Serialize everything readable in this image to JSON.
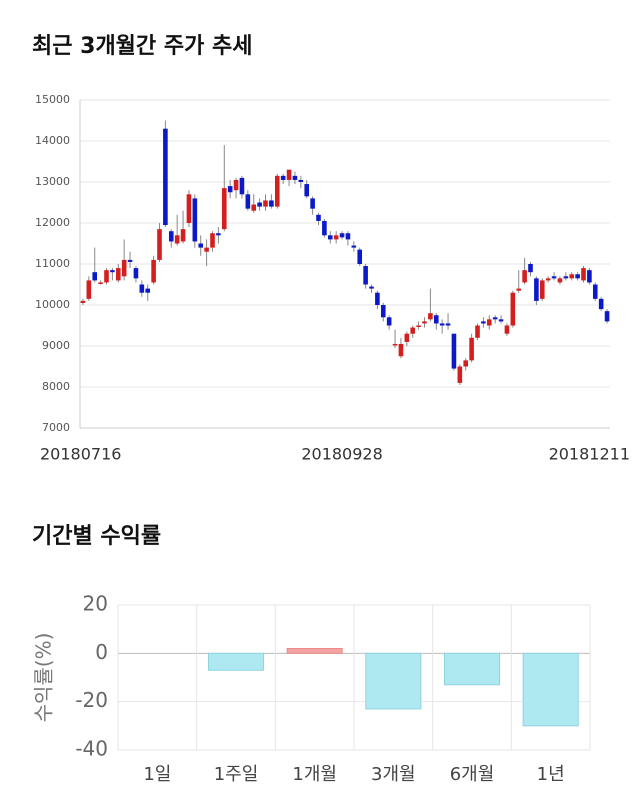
{
  "chart_data": [
    {
      "type": "candlestick",
      "title": "최근 3개월간 주가 추세",
      "categories": [
        "20180716",
        null,
        null,
        null,
        null,
        null,
        null,
        null,
        null,
        null,
        null,
        null,
        null,
        null,
        null,
        null,
        null,
        null,
        null,
        null,
        null,
        null,
        null,
        null,
        null,
        null,
        null,
        null,
        null,
        null,
        null,
        null,
        null,
        null,
        null,
        null,
        null,
        null,
        null,
        null,
        null,
        null,
        null,
        null,
        "20180928",
        null,
        null,
        null,
        null,
        null,
        null,
        null,
        null,
        null,
        null,
        null,
        null,
        null,
        null,
        null,
        null,
        null,
        null,
        null,
        null,
        null,
        null,
        null,
        null,
        null,
        null,
        null,
        null,
        null,
        null,
        null,
        null,
        null,
        null,
        null,
        null,
        null,
        null,
        null,
        null,
        null,
        null,
        "20181211",
        null,
        null
      ],
      "open": [
        10050,
        10150,
        10800,
        10550,
        10550,
        10850,
        10600,
        10700,
        11100,
        10900,
        10500,
        10400,
        10550,
        11100,
        14300,
        11800,
        11500,
        11550,
        12000,
        12600,
        11500,
        11300,
        11400,
        11750,
        11850,
        12900,
        12800,
        13100,
        12700,
        12300,
        12500,
        12400,
        12550,
        12400,
        13150,
        13050,
        13150,
        13050,
        12950,
        12600,
        12200,
        12050,
        11700,
        11600,
        11750,
        11750,
        11450,
        11350,
        10950,
        10450,
        10300,
        10000,
        9700,
        9050,
        8750,
        9100,
        9300,
        9500,
        9550,
        9650,
        9750,
        9550,
        9550,
        9300,
        8100,
        8500,
        8650,
        9200,
        9600,
        9500,
        9700,
        9650,
        9300,
        9500,
        10350,
        10550,
        11000,
        10650,
        10150,
        10600,
        10700,
        10550,
        10700,
        10650,
        10750,
        10600,
        10850,
        10500,
        10150,
        9850
      ],
      "close": [
        10100,
        10600,
        10600,
        10550,
        10850,
        10800,
        10900,
        11100,
        11050,
        10650,
        10300,
        10300,
        11100,
        11850,
        11950,
        11550,
        11700,
        11850,
        12700,
        11550,
        11400,
        11400,
        11750,
        11700,
        12850,
        12750,
        13050,
        12700,
        12350,
        12450,
        12400,
        12550,
        12400,
        13150,
        13050,
        13300,
        13050,
        13000,
        12650,
        12350,
        12050,
        11700,
        11600,
        11700,
        11650,
        11600,
        11400,
        11000,
        10500,
        10400,
        10000,
        9700,
        9500,
        9050,
        9050,
        9300,
        9450,
        9500,
        9600,
        9800,
        9550,
        9500,
        9500,
        8450,
        8500,
        8650,
        9200,
        9500,
        9550,
        9650,
        9650,
        9600,
        9500,
        10300,
        10400,
        10850,
        10800,
        10100,
        10600,
        10650,
        10650,
        10650,
        10650,
        10750,
        10650,
        10900,
        10550,
        10150,
        9900,
        9600
      ],
      "high": [
        10150,
        10700,
        11400,
        10600,
        10900,
        10900,
        11000,
        11600,
        11300,
        10950,
        10600,
        10500,
        11200,
        12000,
        14500,
        11850,
        12200,
        12300,
        12800,
        12700,
        11700,
        11600,
        11800,
        11900,
        13900,
        13050,
        13100,
        13150,
        12800,
        12700,
        12600,
        12700,
        12700,
        13200,
        13200,
        13300,
        13250,
        13150,
        13050,
        12650,
        12250,
        12100,
        11800,
        11800,
        11800,
        11800,
        11550,
        11400,
        11000,
        10500,
        10350,
        10050,
        9750,
        9400,
        9200,
        9350,
        9500,
        9600,
        9700,
        10400,
        9800,
        9650,
        9800,
        9300,
        8550,
        8700,
        9300,
        9550,
        9700,
        9750,
        9750,
        9750,
        9550,
        10350,
        10850,
        11150,
        11050,
        10700,
        10650,
        10700,
        10800,
        10700,
        10800,
        10800,
        10800,
        10950,
        10900,
        10550,
        10200,
        9900
      ],
      "low": [
        10000,
        10100,
        10550,
        10500,
        10500,
        10600,
        10550,
        10600,
        10900,
        10550,
        10200,
        10100,
        10500,
        11050,
        11900,
        11400,
        11450,
        11500,
        11900,
        11400,
        11200,
        10950,
        11300,
        11500,
        11800,
        12600,
        12600,
        12600,
        12300,
        12250,
        12300,
        12300,
        12350,
        12350,
        12950,
        12900,
        12950,
        12850,
        12600,
        12200,
        11950,
        11650,
        11500,
        11500,
        11600,
        11450,
        11300,
        10950,
        10400,
        10300,
        9900,
        9600,
        9400,
        8950,
        8700,
        9000,
        9200,
        9400,
        9450,
        9600,
        9400,
        9300,
        9400,
        8400,
        8050,
        8400,
        8600,
        9150,
        9450,
        9400,
        9550,
        9550,
        9250,
        9450,
        10300,
        10500,
        10700,
        10000,
        10100,
        10550,
        10600,
        10500,
        10600,
        10600,
        10600,
        10550,
        10500,
        10100,
        9850,
        9550
      ],
      "up_color": "#d41f1f",
      "down_color": "#0b19c9",
      "ylim": [
        7000,
        15000
      ],
      "yticks": [
        7000,
        8000,
        9000,
        10000,
        11000,
        12000,
        13000,
        14000,
        15000
      ],
      "grid": true
    },
    {
      "type": "bar",
      "title": "기간별 수익률",
      "ylabel": "수익률(%)",
      "categories": [
        "1일",
        "1주일",
        "1개월",
        "3개월",
        "6개월",
        "1년"
      ],
      "values": [
        0,
        -7,
        2,
        -23,
        -13,
        -30
      ],
      "positive_color": "#f4a3a3",
      "negative_color": "#aee9f2",
      "ylim": [
        -40,
        20
      ],
      "yticks": [
        -40,
        -20,
        0,
        20
      ],
      "grid": true
    }
  ]
}
